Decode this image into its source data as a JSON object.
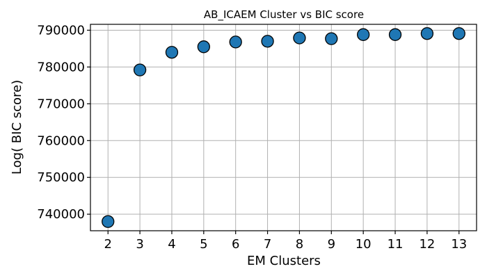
{
  "chart_data": {
    "type": "scatter",
    "title": "AB_ICAEM Cluster vs BIC score",
    "xlabel": "EM Clusters",
    "ylabel": "Log( BIC score)",
    "x": [
      2,
      3,
      4,
      5,
      6,
      7,
      8,
      9,
      10,
      11,
      12,
      13
    ],
    "y": [
      738000,
      779200,
      784000,
      785500,
      786800,
      787000,
      787900,
      787700,
      788800,
      788800,
      789100,
      789100
    ],
    "xlim": [
      1.45,
      13.55
    ],
    "ylim": [
      735500,
      791600
    ],
    "xticks": [
      "2",
      "3",
      "4",
      "5",
      "6",
      "7",
      "8",
      "9",
      "10",
      "11",
      "12",
      "13"
    ],
    "yticks": [
      "740000",
      "750000",
      "760000",
      "770000",
      "780000",
      "790000"
    ],
    "ytick_values": [
      740000,
      750000,
      760000,
      770000,
      780000,
      790000
    ],
    "grid": true,
    "marker_color": "#1f77b4",
    "marker_edge_color": "#000000"
  }
}
